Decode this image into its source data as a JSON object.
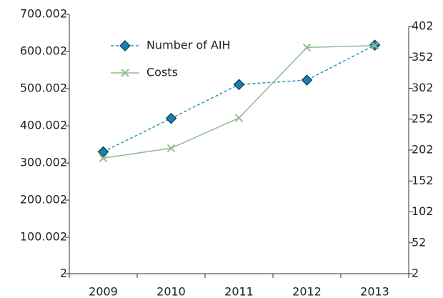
{
  "chart_data": {
    "type": "line",
    "categories": [
      "2009",
      "2010",
      "2011",
      "2012",
      "2013"
    ],
    "series": [
      {
        "name": "Number of AIH",
        "color": "#2a8fbf",
        "marker": "diamond",
        "dashed": true,
        "values": [
          330,
          420,
          511,
          523,
          617
        ]
      },
      {
        "name": "Costs",
        "color": "#8fbb8f",
        "marker": "x",
        "dashed": false,
        "axis": "y2",
        "values": [
          189,
          205,
          254,
          368,
          371
        ]
      }
    ],
    "ylim": [
      2,
      700.002
    ],
    "yticks": [
      2,
      100.002,
      200.002,
      300.002,
      400.002,
      500.002,
      600.002,
      700.002
    ],
    "y2lim": [
      2,
      402
    ],
    "y2ticks": [
      2,
      52,
      102,
      152,
      202,
      252,
      302,
      352,
      402
    ],
    "legend": "upper-left"
  }
}
